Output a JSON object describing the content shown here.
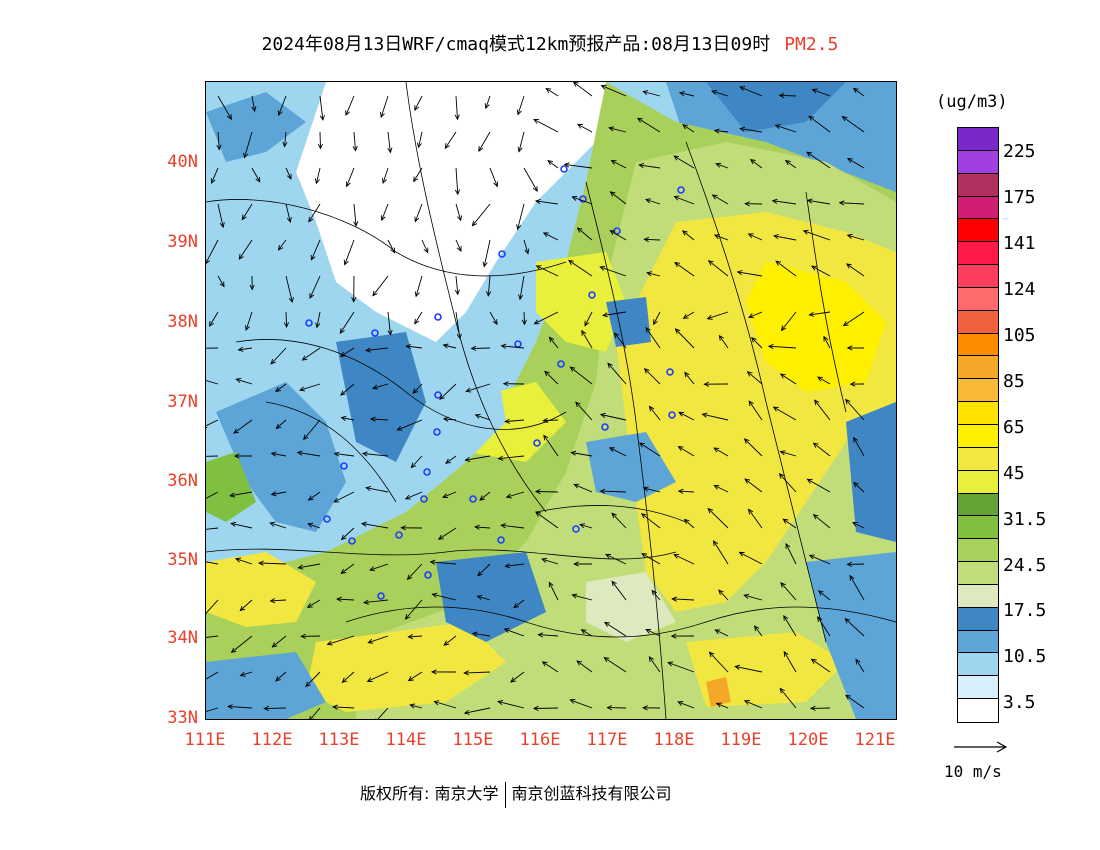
{
  "header": {
    "title_main": "2024年08月13日WRF/cmaq模式12km预报产品:08月13日09时",
    "title_var": "PM2.5"
  },
  "map": {
    "lon_labels": [
      "111E",
      "112E",
      "113E",
      "114E",
      "115E",
      "116E",
      "117E",
      "118E",
      "119E",
      "120E",
      "121E"
    ],
    "lat_labels": [
      "40N",
      "39N",
      "38N",
      "37N",
      "36N",
      "35N",
      "34N",
      "33N"
    ],
    "lon_range": [
      111,
      121.3
    ],
    "lat_range": [
      33,
      41
    ]
  },
  "legend": {
    "unit": "(ug/m3)",
    "colors": [
      "#7b28c9",
      "#a23fe0",
      "#b03060",
      "#d01e74",
      "#ff0000",
      "#ff1a4a",
      "#ff3e5e",
      "#ff6a6a",
      "#f0603a",
      "#ff8c00",
      "#f4a828",
      "#f9b937",
      "#ffe200",
      "#fff000",
      "#f2e640",
      "#e8f03c",
      "#62a534",
      "#80c040",
      "#a8d05a",
      "#c1dd7a",
      "#dfe9bf",
      "#3f87c4",
      "#5ca5d6",
      "#9fd6ef",
      "#d8eefb",
      "#ffffff"
    ],
    "labels": [
      "225",
      "175",
      "141",
      "124",
      "105",
      "85",
      "65",
      "45",
      "31.5",
      "24.5",
      "17.5",
      "10.5",
      "3.5"
    ],
    "reference_vector": "10 m/s"
  },
  "footer": {
    "copyright_prefix": "版权所有:",
    "org1": "南京大学",
    "org2": "南京创蓝科技有限公司"
  }
}
